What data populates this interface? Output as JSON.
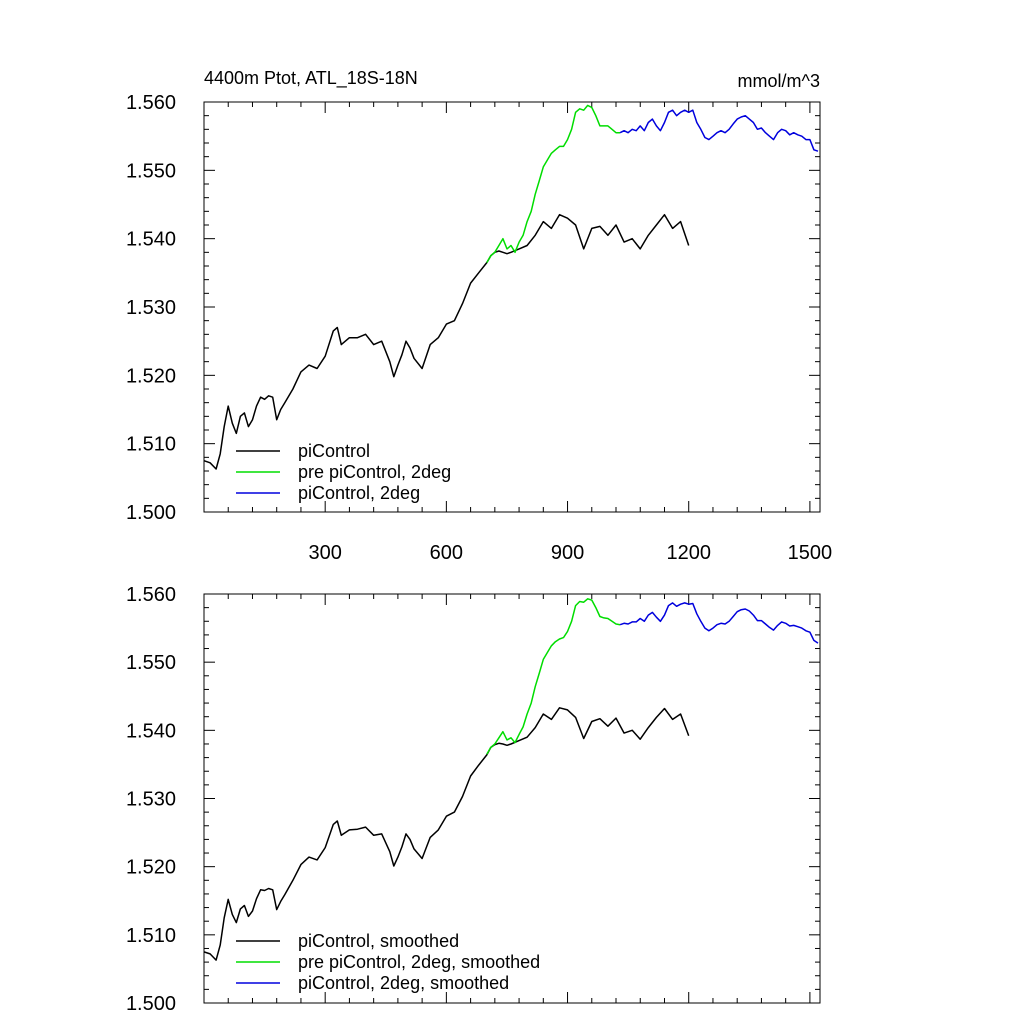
{
  "chart_data": [
    {
      "type": "line",
      "title_left": "4400m Ptot, ATL_18S-18N",
      "title_right": "mmol/m^3",
      "xlabel": "",
      "ylabel": "",
      "xlim": [
        0,
        1525
      ],
      "ylim": [
        1.5,
        1.56
      ],
      "xticks": [
        300,
        600,
        900,
        1200,
        1500
      ],
      "xtick_labels": [
        "300",
        "600",
        "900",
        "1200",
        "1500"
      ],
      "yticks": [
        1.5,
        1.51,
        1.52,
        1.53,
        1.54,
        1.55,
        1.56
      ],
      "ytick_labels": [
        "1.500",
        "1.510",
        "1.520",
        "1.530",
        "1.540",
        "1.550",
        "1.560"
      ],
      "legend_position": "bottom-left",
      "series": [
        {
          "name": "piControl",
          "color": "#000000",
          "x": [
            0,
            15,
            30,
            40,
            50,
            60,
            70,
            80,
            90,
            100,
            110,
            120,
            130,
            140,
            150,
            160,
            170,
            180,
            190,
            200,
            220,
            240,
            260,
            280,
            300,
            320,
            330,
            340,
            360,
            380,
            400,
            420,
            440,
            460,
            470,
            480,
            490,
            500,
            510,
            520,
            540,
            560,
            580,
            600,
            620,
            640,
            660,
            680,
            700,
            710,
            720,
            730,
            740,
            750,
            760,
            780,
            800,
            820,
            840,
            860,
            880,
            900,
            920,
            940,
            960,
            980,
            1000,
            1020,
            1040,
            1060,
            1080,
            1100,
            1120,
            1140,
            1160,
            1180,
            1200
          ],
          "y": [
            1.5075,
            1.5072,
            1.5063,
            1.5085,
            1.5125,
            1.5155,
            1.513,
            1.5115,
            1.514,
            1.5145,
            1.5125,
            1.5135,
            1.5155,
            1.5168,
            1.5165,
            1.517,
            1.5168,
            1.5135,
            1.515,
            1.516,
            1.518,
            1.5205,
            1.5215,
            1.521,
            1.5228,
            1.5265,
            1.527,
            1.5245,
            1.5255,
            1.5255,
            1.526,
            1.5245,
            1.525,
            1.522,
            1.5198,
            1.5215,
            1.523,
            1.525,
            1.524,
            1.5225,
            1.521,
            1.5245,
            1.5255,
            1.5275,
            1.528,
            1.5305,
            1.5335,
            1.535,
            1.5365,
            1.5375,
            1.538,
            1.5382,
            1.538,
            1.5378,
            1.538,
            1.5385,
            1.539,
            1.5405,
            1.5425,
            1.5415,
            1.5435,
            1.543,
            1.542,
            1.5385,
            1.5415,
            1.5418,
            1.5405,
            1.542,
            1.5395,
            1.54,
            1.5385,
            1.5405,
            1.542,
            1.5435,
            1.5415,
            1.5425,
            1.539
          ]
        },
        {
          "name": "pre piControl, 2deg",
          "color": "#00dd00",
          "x": [
            700,
            710,
            720,
            730,
            740,
            750,
            760,
            770,
            780,
            790,
            800,
            810,
            820,
            830,
            840,
            850,
            860,
            870,
            880,
            890,
            900,
            910,
            920,
            930,
            940,
            950,
            960,
            970,
            980,
            990,
            1000,
            1010,
            1020,
            1030
          ],
          "y": [
            1.5365,
            1.5375,
            1.538,
            1.539,
            1.54,
            1.5385,
            1.539,
            1.538,
            1.5395,
            1.5405,
            1.5425,
            1.544,
            1.5465,
            1.5485,
            1.5505,
            1.5515,
            1.5525,
            1.553,
            1.5535,
            1.5535,
            1.5545,
            1.556,
            1.5585,
            1.559,
            1.5588,
            1.5595,
            1.5592,
            1.558,
            1.5565,
            1.5565,
            1.5565,
            1.556,
            1.5555,
            1.5555
          ]
        },
        {
          "name": "piControl, 2deg",
          "color": "#0000dd",
          "x": [
            1030,
            1040,
            1050,
            1060,
            1070,
            1080,
            1090,
            1100,
            1110,
            1120,
            1130,
            1140,
            1150,
            1160,
            1170,
            1180,
            1190,
            1200,
            1210,
            1220,
            1230,
            1240,
            1250,
            1260,
            1270,
            1280,
            1290,
            1300,
            1310,
            1320,
            1330,
            1340,
            1350,
            1360,
            1370,
            1380,
            1390,
            1400,
            1410,
            1420,
            1430,
            1440,
            1450,
            1460,
            1470,
            1480,
            1490,
            1500,
            1510,
            1520
          ],
          "y": [
            1.5555,
            1.5558,
            1.5555,
            1.556,
            1.5558,
            1.5565,
            1.5558,
            1.557,
            1.5575,
            1.5565,
            1.5558,
            1.557,
            1.5585,
            1.5588,
            1.558,
            1.5585,
            1.5588,
            1.5585,
            1.5588,
            1.557,
            1.556,
            1.5548,
            1.5545,
            1.555,
            1.5555,
            1.5558,
            1.5555,
            1.556,
            1.5568,
            1.5575,
            1.5578,
            1.558,
            1.5575,
            1.557,
            1.556,
            1.5562,
            1.5555,
            1.555,
            1.5545,
            1.5555,
            1.556,
            1.5558,
            1.5552,
            1.5555,
            1.5552,
            1.555,
            1.5545,
            1.5545,
            1.553,
            1.5528
          ]
        }
      ]
    },
    {
      "type": "line",
      "title_left": "",
      "title_right": "",
      "xlabel": "",
      "ylabel": "",
      "xlim": [
        0,
        1525
      ],
      "ylim": [
        1.5,
        1.56
      ],
      "xticks": [
        300,
        600,
        900,
        1200,
        1500
      ],
      "xtick_labels": [],
      "yticks": [
        1.5,
        1.51,
        1.52,
        1.53,
        1.54,
        1.55,
        1.56
      ],
      "ytick_labels": [
        "1.500",
        "1.510",
        "1.520",
        "1.530",
        "1.540",
        "1.550",
        "1.560"
      ],
      "legend_position": "bottom-left",
      "series": [
        {
          "name": "piControl, smoothed",
          "color": "#000000",
          "x": [
            0,
            15,
            30,
            40,
            50,
            60,
            70,
            80,
            90,
            100,
            110,
            120,
            130,
            140,
            150,
            160,
            170,
            180,
            190,
            200,
            220,
            240,
            260,
            280,
            300,
            320,
            330,
            340,
            360,
            380,
            400,
            420,
            440,
            460,
            470,
            480,
            490,
            500,
            510,
            520,
            540,
            560,
            580,
            600,
            620,
            640,
            660,
            680,
            700,
            710,
            720,
            730,
            740,
            750,
            760,
            780,
            800,
            820,
            840,
            860,
            880,
            900,
            920,
            940,
            960,
            980,
            1000,
            1020,
            1040,
            1060,
            1080,
            1100,
            1120,
            1140,
            1160,
            1180,
            1200
          ],
          "y": [
            1.5075,
            1.5072,
            1.5063,
            1.5085,
            1.5125,
            1.5152,
            1.513,
            1.5118,
            1.5138,
            1.5143,
            1.5127,
            1.5135,
            1.5153,
            1.5166,
            1.5165,
            1.5168,
            1.5166,
            1.5137,
            1.5149,
            1.5159,
            1.518,
            1.5203,
            1.5214,
            1.521,
            1.5228,
            1.5262,
            1.5267,
            1.5246,
            1.5254,
            1.5255,
            1.5258,
            1.5246,
            1.5248,
            1.5222,
            1.5201,
            1.5214,
            1.5229,
            1.5248,
            1.524,
            1.5226,
            1.5212,
            1.5243,
            1.5254,
            1.5274,
            1.528,
            1.5303,
            1.5333,
            1.5349,
            1.5364,
            1.5375,
            1.5379,
            1.5381,
            1.538,
            1.5378,
            1.538,
            1.5385,
            1.539,
            1.5404,
            1.5424,
            1.5416,
            1.5433,
            1.543,
            1.5419,
            1.5388,
            1.5413,
            1.5417,
            1.5406,
            1.5418,
            1.5396,
            1.54,
            1.5387,
            1.5404,
            1.5419,
            1.5432,
            1.5416,
            1.5424,
            1.5392
          ]
        },
        {
          "name": "pre piControl, 2deg, smoothed",
          "color": "#00dd00",
          "x": [
            700,
            710,
            720,
            730,
            740,
            750,
            760,
            770,
            780,
            790,
            800,
            810,
            820,
            830,
            840,
            850,
            860,
            870,
            880,
            890,
            900,
            910,
            920,
            930,
            940,
            950,
            960,
            970,
            980,
            990,
            1000,
            1010,
            1020,
            1030
          ],
          "y": [
            1.5365,
            1.5375,
            1.538,
            1.5389,
            1.5398,
            1.5386,
            1.5389,
            1.5382,
            1.5394,
            1.5405,
            1.5424,
            1.544,
            1.5464,
            1.5484,
            1.5504,
            1.5514,
            1.5524,
            1.553,
            1.5534,
            1.5536,
            1.5545,
            1.556,
            1.5583,
            1.5589,
            1.5588,
            1.5593,
            1.5591,
            1.558,
            1.5567,
            1.5565,
            1.5564,
            1.556,
            1.5556,
            1.5555
          ]
        },
        {
          "name": "piControl, 2deg, smoothed",
          "color": "#0000dd",
          "x": [
            1030,
            1040,
            1050,
            1060,
            1070,
            1080,
            1090,
            1100,
            1110,
            1120,
            1130,
            1140,
            1150,
            1160,
            1170,
            1180,
            1190,
            1200,
            1210,
            1220,
            1230,
            1240,
            1250,
            1260,
            1270,
            1280,
            1290,
            1300,
            1310,
            1320,
            1330,
            1340,
            1350,
            1360,
            1370,
            1380,
            1390,
            1400,
            1410,
            1420,
            1430,
            1440,
            1450,
            1460,
            1470,
            1480,
            1490,
            1500,
            1510,
            1520
          ],
          "y": [
            1.5555,
            1.5557,
            1.5556,
            1.5559,
            1.5559,
            1.5564,
            1.556,
            1.5569,
            1.5573,
            1.5566,
            1.556,
            1.5569,
            1.5583,
            1.5587,
            1.5582,
            1.5585,
            1.5587,
            1.5585,
            1.5586,
            1.5571,
            1.556,
            1.555,
            1.5546,
            1.555,
            1.5555,
            1.5557,
            1.5556,
            1.556,
            1.5567,
            1.5574,
            1.5577,
            1.5578,
            1.5575,
            1.5569,
            1.5561,
            1.5561,
            1.5556,
            1.5551,
            1.5547,
            1.5554,
            1.5559,
            1.5557,
            1.5553,
            1.5554,
            1.5552,
            1.555,
            1.5546,
            1.5544,
            1.5532,
            1.5528
          ]
        }
      ]
    }
  ]
}
